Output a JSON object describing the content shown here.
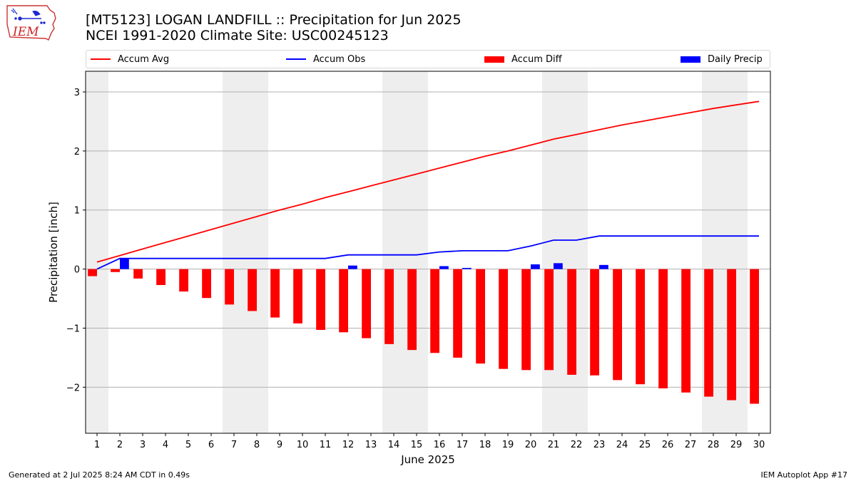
{
  "header": {
    "title_line1": "[MT5123] LOGAN LANDFILL :: Precipitation for Jun 2025",
    "title_line2": "NCEI 1991-2020 Climate Site: USC00245123"
  },
  "logo": {
    "text": "IEM",
    "color": "#cc2222"
  },
  "legend": {
    "items": [
      {
        "label": "Accum Avg",
        "kind": "line",
        "color": "#ff0000"
      },
      {
        "label": "Accum Obs",
        "kind": "line",
        "color": "#0000ff"
      },
      {
        "label": "Accum Diff",
        "kind": "box",
        "color": "#ff0000"
      },
      {
        "label": "Daily Precip",
        "kind": "box",
        "color": "#0000ff"
      }
    ]
  },
  "footer": {
    "left": "Generated at 2 Jul 2025 8:24 AM CDT in 0.49s",
    "right": "IEM Autoplot App #17"
  },
  "chart_data": {
    "type": "bar",
    "xlabel": "June 2025",
    "ylabel": "Precipitation [inch]",
    "xlim": [
      0.5,
      30.5
    ],
    "ylim": [
      -2.78,
      3.35
    ],
    "yticks": [
      -2,
      -1,
      0,
      1,
      2,
      3
    ],
    "ytick_labels": [
      "−2",
      "−1",
      "0",
      "1",
      "2",
      "3"
    ],
    "categories": [
      "1",
      "2",
      "3",
      "4",
      "5",
      "6",
      "7",
      "8",
      "9",
      "10",
      "11",
      "12",
      "13",
      "14",
      "15",
      "16",
      "17",
      "18",
      "19",
      "20",
      "21",
      "22",
      "23",
      "24",
      "25",
      "26",
      "27",
      "28",
      "29",
      "30"
    ],
    "grid": "horizontal",
    "legend_position": "top",
    "weekend_shading": [
      [
        0.5,
        1.5
      ],
      [
        6.5,
        8.5
      ],
      [
        13.5,
        15.5
      ],
      [
        20.5,
        22.5
      ],
      [
        27.5,
        29.5
      ]
    ],
    "shade_color": "#eeeeee",
    "series": [
      {
        "name": "Accum Avg",
        "kind": "line",
        "color": "#ff0000",
        "values": [
          0.12,
          0.23,
          0.34,
          0.45,
          0.56,
          0.67,
          0.78,
          0.89,
          1.0,
          1.1,
          1.21,
          1.31,
          1.41,
          1.51,
          1.61,
          1.71,
          1.81,
          1.91,
          2.0,
          2.1,
          2.2,
          2.28,
          2.36,
          2.44,
          2.51,
          2.58,
          2.65,
          2.72,
          2.78,
          2.84
        ]
      },
      {
        "name": "Accum Obs",
        "kind": "line",
        "color": "#0000ff",
        "values": [
          0.0,
          0.18,
          0.18,
          0.18,
          0.18,
          0.18,
          0.18,
          0.18,
          0.18,
          0.18,
          0.18,
          0.24,
          0.24,
          0.24,
          0.24,
          0.29,
          0.31,
          0.31,
          0.31,
          0.39,
          0.49,
          0.49,
          0.56,
          0.56,
          0.56,
          0.56,
          0.56,
          0.56,
          0.56,
          0.56
        ]
      },
      {
        "name": "Accum Diff",
        "kind": "bar",
        "color": "#ff0000",
        "offset": -0.2,
        "values": [
          -0.12,
          -0.05,
          -0.16,
          -0.27,
          -0.38,
          -0.49,
          -0.6,
          -0.71,
          -0.82,
          -0.92,
          -1.03,
          -1.07,
          -1.17,
          -1.27,
          -1.37,
          -1.42,
          -1.5,
          -1.6,
          -1.69,
          -1.71,
          -1.71,
          -1.79,
          -1.8,
          -1.88,
          -1.95,
          -2.02,
          -2.09,
          -2.16,
          -2.22,
          -2.28
        ]
      },
      {
        "name": "Daily Precip",
        "kind": "bar",
        "color": "#0000ff",
        "offset": 0.2,
        "values": [
          0.0,
          0.18,
          0.0,
          0.0,
          0.0,
          0.0,
          0.0,
          0.0,
          0.0,
          0.0,
          0.0,
          0.06,
          0.0,
          0.0,
          0.0,
          0.05,
          0.02,
          0.0,
          0.0,
          0.08,
          0.1,
          0.0,
          0.07,
          0.0,
          0.0,
          0.0,
          0.0,
          0.0,
          0.0,
          0.0
        ]
      }
    ]
  }
}
